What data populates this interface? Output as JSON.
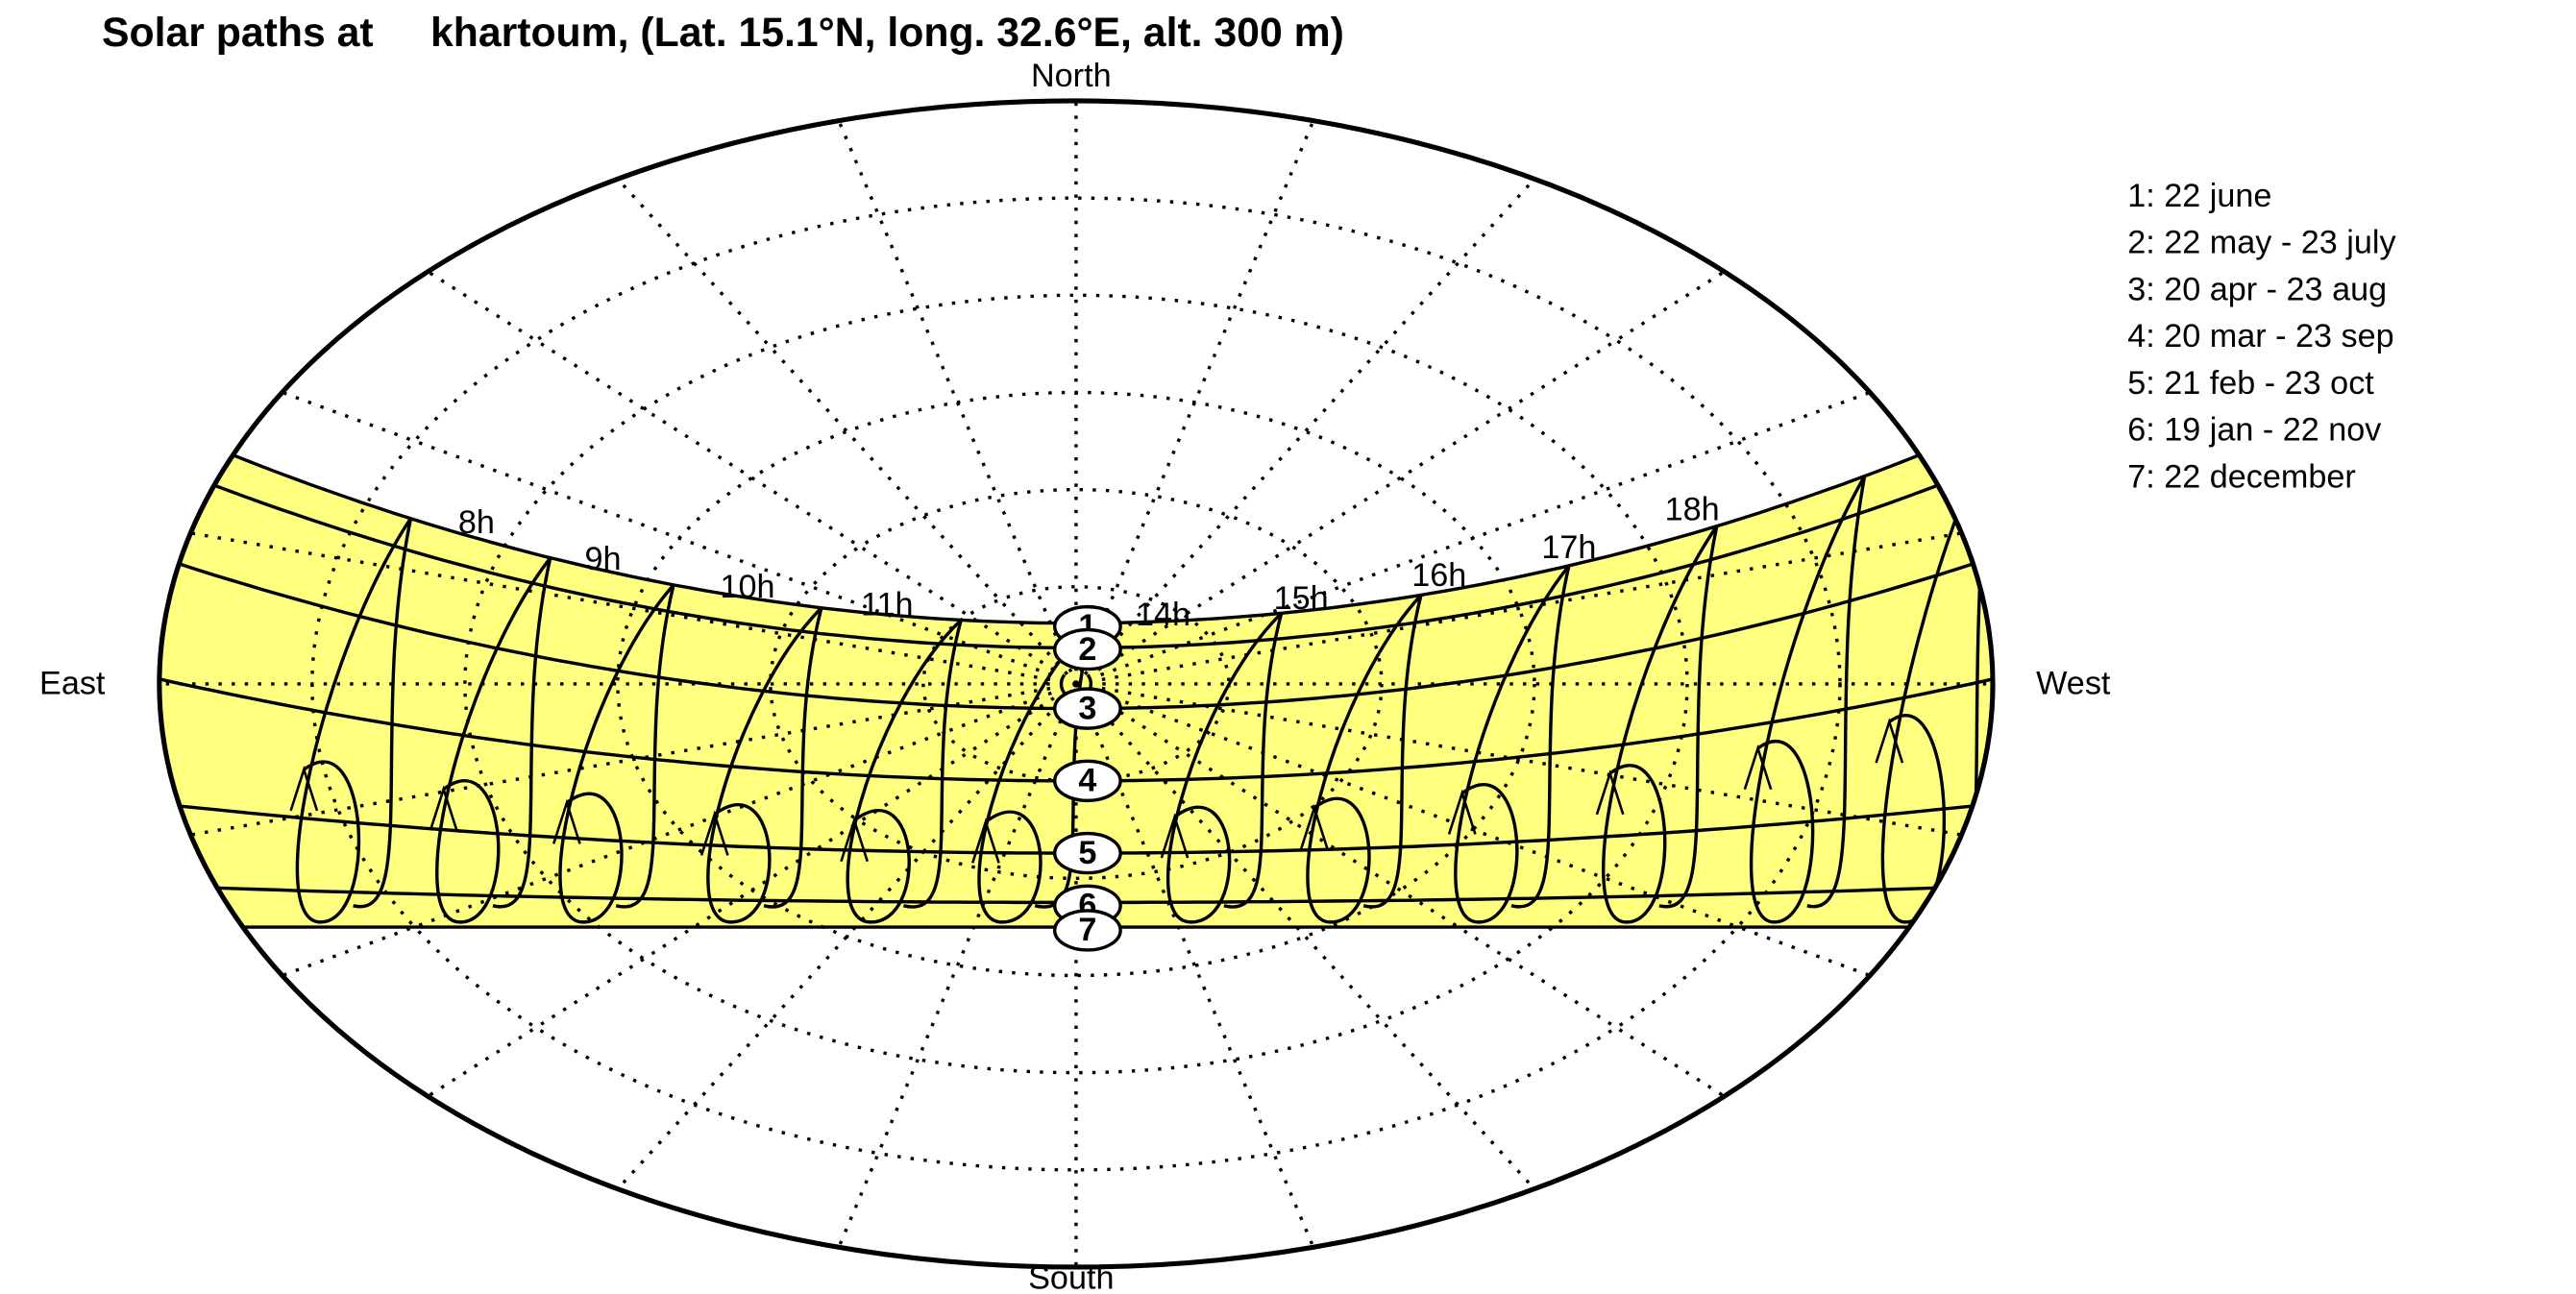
{
  "title": "Solar paths at     khartoum, (Lat. 15.1°N, long. 32.6°E, alt. 300 m)",
  "compass": {
    "north": "North",
    "south": "South",
    "east": "East",
    "west": "West"
  },
  "hour_labels": [
    "8h",
    "9h",
    "10h",
    "11h",
    "14h",
    "15h",
    "16h",
    "17h",
    "18h"
  ],
  "date_markers": [
    "1",
    "2",
    "3",
    "4",
    "5",
    "6",
    "7"
  ],
  "legend": [
    "1: 22 june",
    "2: 22 may - 23 july",
    "3: 20 apr - 23 aug",
    "4: 20 mar - 23 sep",
    "5: 21 feb - 23 oct",
    "6: 19 jan - 22 nov",
    "7: 22 december"
  ]
}
